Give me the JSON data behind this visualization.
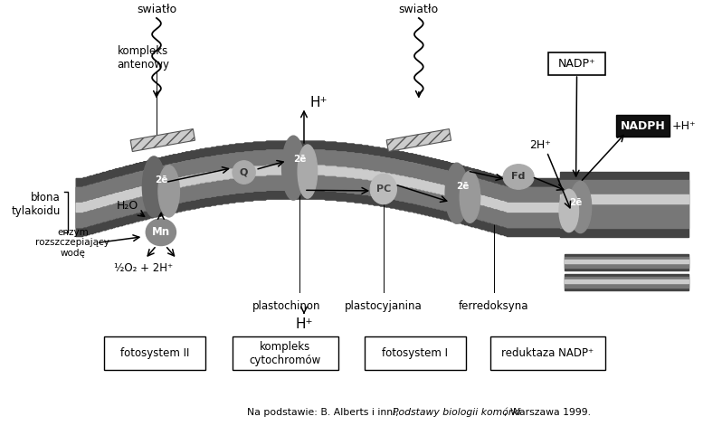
{
  "bg_color": "#ffffff",
  "fig_width": 7.77,
  "fig_height": 4.71,
  "labels": {
    "swiatlo1": "swiatło",
    "swiatlo2": "swiatło",
    "kompleks_antenowy": "kompleks\nantenowy",
    "H_plus_top": "H⁺",
    "blona_tylakoidu": "błona\ntylakoidu",
    "H2O": "H₂O",
    "enzym": "enzym\nrozszczepiający\nwodę",
    "formula": "½O₂ + 2H⁺",
    "plastochinon": "plastochinon",
    "H_plus_bot": "H⁺",
    "plastocyjanina": "plastocyjanina",
    "ferredoksyna": "ferredoksyna",
    "NADP_plus": "NADP⁺",
    "2H_plus": "2H⁺",
    "NADPH": "NADPH",
    "H_plus_right": "+H⁺",
    "fotosystem2": "fotosystem II",
    "kompleks_cyt": "kompleks\ncytochromów",
    "fotosystem1": "fotosystem I",
    "reduktaza": "reduktaza NADP⁺",
    "2e_bar": "2ē"
  },
  "colors": {
    "membrane_outer": "#444444",
    "membrane_inner": "#777777",
    "membrane_stripe": "#cccccc",
    "ps2_dark": "#666666",
    "ps2_light": "#999999",
    "cyt_dark": "#777777",
    "cyt_light": "#aaaaaa",
    "ps1_dark": "#777777",
    "ps1_light": "#999999",
    "reduct_dark": "#888888",
    "reduct_light": "#bbbbbb",
    "mn_color": "#888888",
    "q_color": "#aaaaaa",
    "pc_color": "#bbbbbb",
    "fd_color": "#aaaaaa",
    "hatched_fill": "#cccccc",
    "box_bg": "#ffffff",
    "nadph_bg": "#111111",
    "nadph_text": "#ffffff",
    "text_color": "#000000"
  }
}
